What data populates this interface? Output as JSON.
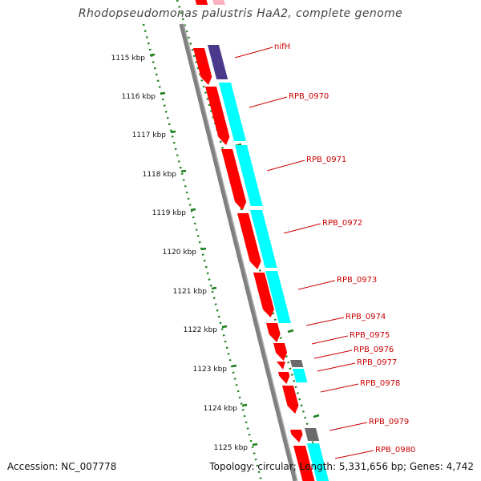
{
  "title": "Rhodopseudomonas palustris HaA2, complete genome",
  "footer": {
    "accession": "Accession: NC_007778",
    "stats": "Topology: circular; Length: 5,331,656 bp; Genes: 4,742"
  },
  "colors": {
    "background": "#ffffff",
    "backbone": "#808080",
    "cds": "#ff0000",
    "gene": "#00ffff",
    "nif_gene": "#4b3a8c",
    "other_gene": "#6b6b6b",
    "tick": "#1a7f1a",
    "label": "#cc0000"
  },
  "scale": {
    "ticks": [
      "1115 kbp",
      "1116 kbp",
      "1117 kbp",
      "1118 kbp",
      "1119 kbp",
      "1120 kbp",
      "1121 kbp",
      "1122 kbp",
      "1123 kbp",
      "1124 kbp",
      "1125 kbp"
    ]
  },
  "gene_labels": [
    "nifH",
    "RPB_0970",
    "RPB_0971",
    "RPB_0972",
    "RPB_0973",
    "RPB_0974",
    "RPB_0975",
    "RPB_0976",
    "RPB_0977",
    "RPB_0978",
    "RPB_0979",
    "RPB_0980"
  ]
}
